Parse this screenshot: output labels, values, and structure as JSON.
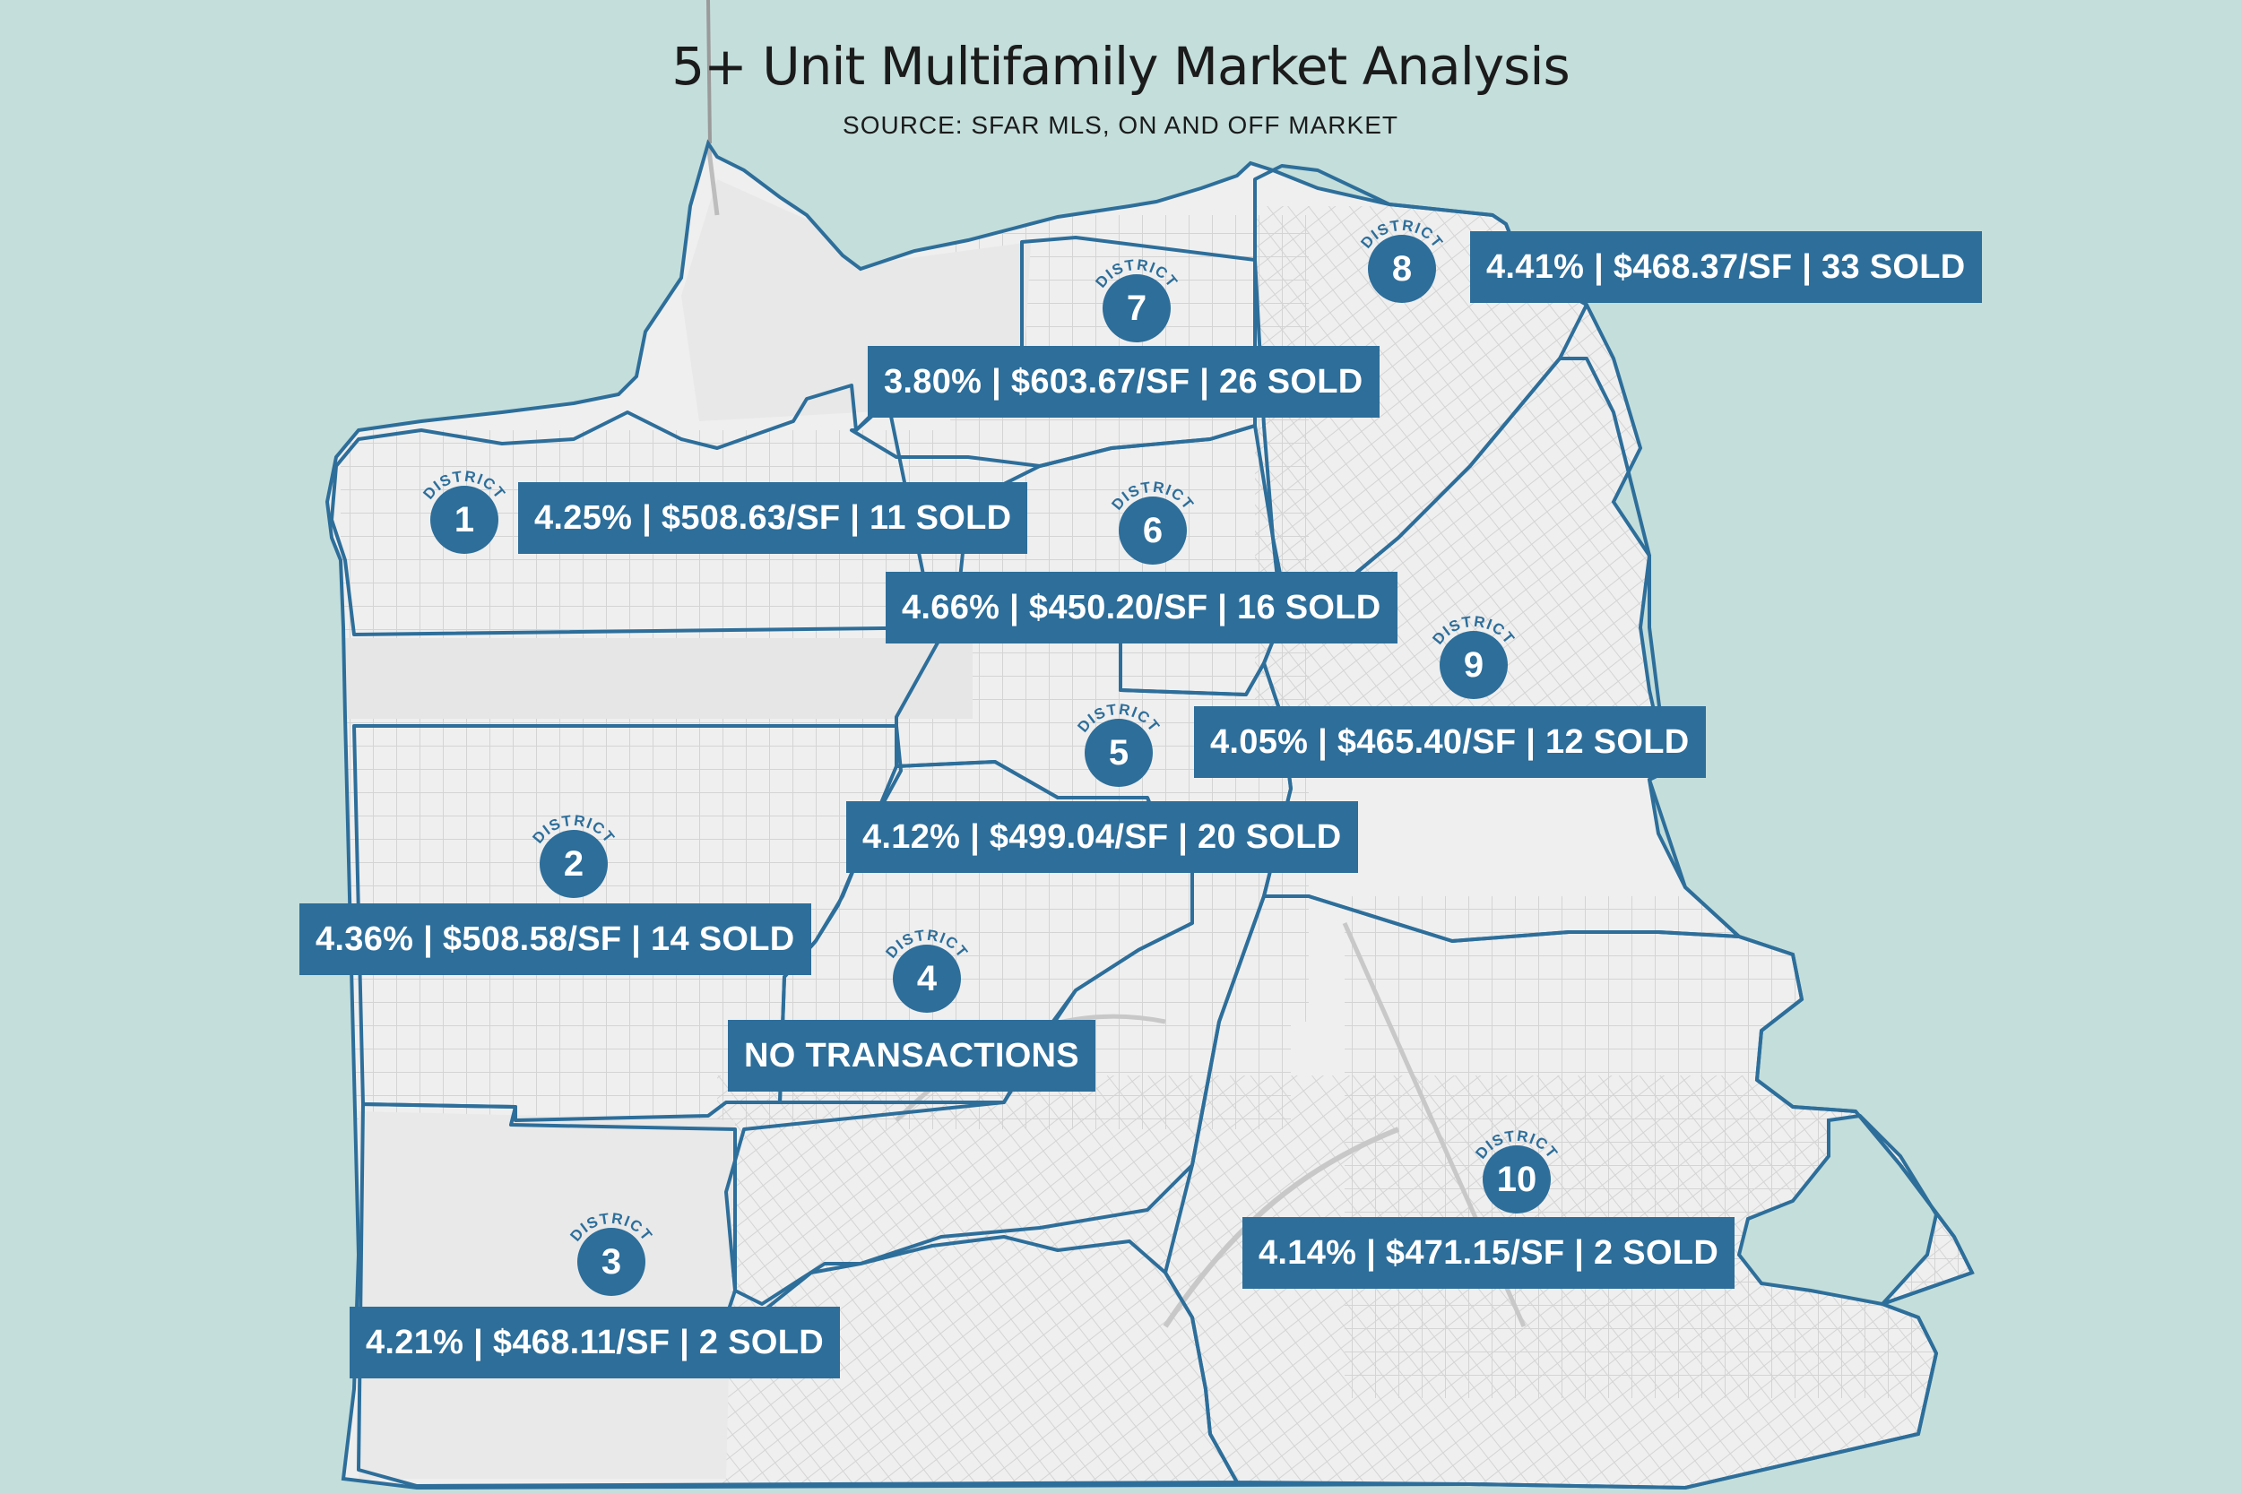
{
  "header": {
    "title": "5+ Unit Multifamily Market Analysis",
    "subtitle": "SOURCE: SFAR MLS, ON AND OFF MARKET"
  },
  "colors": {
    "water": "#c4dedb",
    "land": "#efefef",
    "streets": "#d2d2d2",
    "district_border": "#2d6e9a",
    "label_fill": "#2d6e9a",
    "label_text": "#ffffff"
  },
  "marker_caption": "DISTRICT",
  "districts": [
    {
      "number": "1",
      "stats": "4.25% | $508.63/SF | 11 SOLD"
    },
    {
      "number": "2",
      "stats": "4.36% | $508.58/SF | 14 SOLD"
    },
    {
      "number": "3",
      "stats": "4.21% | $468.11/SF | 2 SOLD"
    },
    {
      "number": "4",
      "stats": "NO TRANSACTIONS"
    },
    {
      "number": "5",
      "stats": "4.12% | $499.04/SF | 20 SOLD"
    },
    {
      "number": "6",
      "stats": "4.66% | $450.20/SF | 16 SOLD"
    },
    {
      "number": "7",
      "stats": "3.80% | $603.67/SF | 26 SOLD"
    },
    {
      "number": "8",
      "stats": "4.41% | $468.37/SF | 33 SOLD"
    },
    {
      "number": "9",
      "stats": "4.05% | $465.40/SF | 12 SOLD"
    },
    {
      "number": "10",
      "stats": "4.14% | $471.15/SF | 2 SOLD"
    }
  ]
}
